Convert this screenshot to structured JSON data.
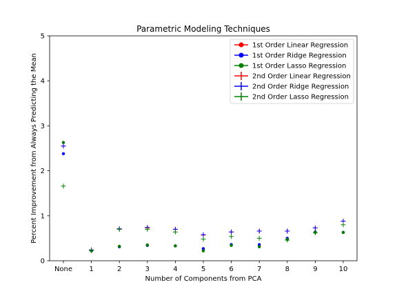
{
  "chart_data": {
    "type": "scatter",
    "title": "Parametric Modeling Techniques",
    "xlabel": "Number of Components from PCA",
    "ylabel": "Percent Improvement from Always Predicting the Mean",
    "categories": [
      "None",
      "1",
      "2",
      "3",
      "4",
      "5",
      "6",
      "7",
      "8",
      "9",
      "10"
    ],
    "ylim": [
      0,
      5
    ],
    "yticks": [
      "0",
      "1",
      "2",
      "3",
      "4",
      "5"
    ],
    "grid": false,
    "legend_position": "top-right",
    "series": [
      {
        "name": "1st Order Linear Regression",
        "marker": "circle",
        "color": "#ff0000",
        "values": [
          2.63,
          0.22,
          0.32,
          0.35,
          0.33,
          0.24,
          0.35,
          0.32,
          0.48,
          0.64,
          0.63
        ]
      },
      {
        "name": "1st Order Ridge Regression",
        "marker": "circle",
        "color": "#0000ff",
        "values": [
          2.38,
          0.22,
          0.31,
          0.34,
          0.33,
          0.27,
          0.36,
          0.36,
          0.5,
          0.64,
          0.63
        ]
      },
      {
        "name": "1st Order Lasso Regression",
        "marker": "circle",
        "color": "#008000",
        "values": [
          2.63,
          0.22,
          0.32,
          0.35,
          0.33,
          0.22,
          0.34,
          0.31,
          0.47,
          0.63,
          0.63
        ]
      },
      {
        "name": "2nd Order Linear Regression",
        "marker": "plus",
        "color": "#ff0000",
        "values": [
          2.55,
          0.24,
          0.71,
          0.73,
          0.7,
          0.57,
          0.64,
          0.66,
          0.66,
          0.73,
          0.88
        ]
      },
      {
        "name": "2nd Order Ridge Regression",
        "marker": "plus",
        "color": "#0000ff",
        "values": [
          2.55,
          0.24,
          0.71,
          0.74,
          0.7,
          0.58,
          0.64,
          0.66,
          0.66,
          0.73,
          0.88
        ]
      },
      {
        "name": "2nd Order Lasso Regression",
        "marker": "plus",
        "color": "#008000",
        "values": [
          1.66,
          0.23,
          0.7,
          0.7,
          0.64,
          0.48,
          0.54,
          0.5,
          0.46,
          0.62,
          0.8
        ]
      }
    ]
  }
}
